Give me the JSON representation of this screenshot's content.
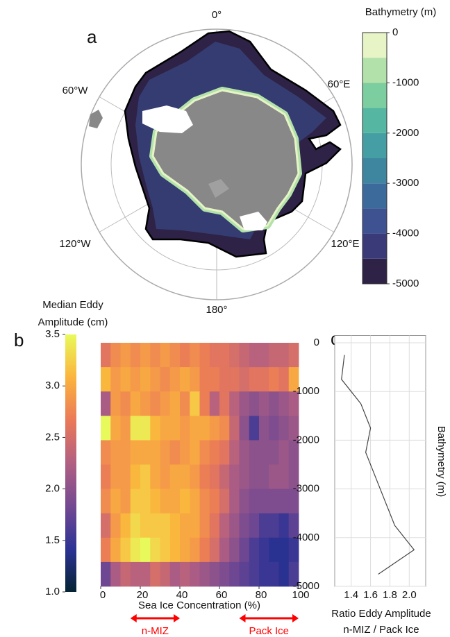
{
  "chart_data": [
    {
      "type": "map",
      "panel_label": "a",
      "lon_labels": [
        "0°",
        "60°E",
        "120°E",
        "180°",
        "120°W",
        "60°W"
      ],
      "colorbar_label": "Bathymetry (m)",
      "clim": [
        -5000,
        0
      ],
      "colorbar_ticks": [
        0,
        -1000,
        -2000,
        -3000,
        -4000,
        -5000
      ],
      "colors": [
        "#2e2246",
        "#3a3a78",
        "#3e5292",
        "#3c6b9b",
        "#3e86a0",
        "#449ea3",
        "#55b6a2",
        "#7ccd9f",
        "#b2e2aa",
        "#e6f4c6"
      ]
    },
    {
      "type": "heatmap",
      "panel_label": "b",
      "xlabel": "Sea Ice Concentration (%)",
      "x_bins": [
        0,
        5,
        10,
        15,
        20,
        25,
        30,
        35,
        40,
        45,
        50,
        55,
        60,
        65,
        70,
        75,
        80,
        85,
        90,
        95,
        100
      ],
      "y_bins": [
        0,
        -500,
        -1000,
        -1500,
        -2000,
        -2500,
        -3000,
        -3500,
        -4000,
        -4500,
        -5000
      ],
      "xlim": [
        0,
        100
      ],
      "ylim": [
        -5000,
        0
      ],
      "xticks": [
        0,
        20,
        40,
        60,
        80,
        100
      ],
      "values": [
        [
          2.6,
          2.8,
          2.9,
          2.8,
          2.9,
          2.8,
          2.9,
          2.8,
          2.7,
          2.8,
          2.7,
          2.6,
          2.6,
          2.5,
          2.4,
          2.3,
          2.3,
          2.4,
          2.4,
          2.5
        ],
        [
          3.1,
          2.9,
          3.0,
          2.9,
          3.0,
          2.9,
          2.8,
          2.9,
          3.0,
          2.9,
          2.7,
          2.7,
          2.6,
          2.6,
          2.5,
          2.6,
          2.6,
          2.7,
          2.6,
          3.0
        ],
        [
          2.2,
          2.9,
          2.8,
          3.0,
          2.9,
          2.8,
          2.9,
          3.0,
          2.8,
          3.2,
          2.7,
          2.3,
          2.6,
          2.3,
          2.1,
          2.0,
          2.1,
          2.0,
          2.1,
          2.2
        ],
        [
          3.5,
          3.0,
          2.9,
          3.4,
          3.4,
          3.1,
          3.0,
          3.0,
          2.9,
          3.0,
          3.0,
          2.9,
          2.8,
          2.4,
          2.0,
          1.6,
          2.0,
          1.9,
          2.0,
          2.1
        ],
        [
          2.8,
          2.9,
          2.9,
          3.0,
          3.0,
          3.0,
          2.9,
          2.8,
          2.9,
          3.0,
          2.8,
          2.7,
          2.6,
          2.3,
          2.1,
          2.0,
          2.0,
          2.0,
          2.1,
          2.0
        ],
        [
          2.7,
          2.9,
          2.9,
          3.1,
          3.2,
          3.0,
          2.9,
          3.0,
          3.0,
          2.9,
          2.7,
          2.6,
          2.4,
          2.2,
          2.1,
          2.0,
          2.0,
          2.1,
          2.1,
          2.0
        ],
        [
          2.8,
          3.0,
          2.9,
          3.2,
          3.2,
          3.1,
          3.0,
          3.0,
          3.1,
          3.0,
          2.8,
          2.7,
          2.5,
          2.2,
          2.0,
          1.9,
          1.9,
          1.9,
          1.9,
          1.9
        ],
        [
          2.5,
          2.9,
          3.1,
          3.3,
          3.2,
          3.2,
          3.2,
          3.1,
          3.0,
          3.0,
          2.8,
          2.6,
          2.3,
          2.1,
          1.9,
          1.8,
          1.6,
          1.6,
          1.5,
          1.7
        ],
        [
          2.7,
          3.0,
          3.2,
          3.4,
          3.5,
          3.3,
          3.2,
          3.1,
          3.0,
          2.9,
          2.7,
          2.5,
          2.2,
          2.0,
          1.8,
          1.6,
          1.5,
          1.4,
          1.4,
          1.5
        ],
        [
          1.8,
          2.2,
          2.4,
          2.3,
          2.3,
          2.5,
          2.4,
          2.2,
          2.3,
          2.2,
          2.1,
          2.0,
          1.9,
          1.8,
          1.7,
          1.6,
          1.5,
          1.5,
          1.4,
          1.6
        ]
      ],
      "colorbar_label": [
        "Median Eddy",
        "Amplitude (cm)"
      ],
      "clim": [
        1,
        3.5
      ],
      "colorbar_ticks": [
        {
          "value": 1,
          "label": "1.0"
        },
        1.5,
        {
          "value": 2,
          "label": "2.0"
        },
        2.5,
        {
          "value": 3,
          "label": "3.0"
        },
        3.5
      ],
      "colormap": [
        "#042333",
        "#2c3395",
        "#744992",
        "#b15f82",
        "#eb7958",
        "#fbb43d",
        "#e8fa5b"
      ],
      "annotations": [
        {
          "text": "n-MIZ",
          "range": [
            15,
            40
          ],
          "color": "#ff0000"
        },
        {
          "text": "Pack Ice",
          "range": [
            70,
            100
          ],
          "color": "#ff0000"
        }
      ]
    },
    {
      "type": "line",
      "panel_label": "c",
      "xlabel": [
        "Ratio Eddy  Amplitude",
        "n-MIZ / Pack Ice"
      ],
      "ylabel": "Bathymetry (m)",
      "series": [
        {
          "color": "#444444",
          "values": [
            1.33,
            1.3,
            1.5,
            1.6,
            1.55,
            1.65,
            1.75,
            1.85,
            2.05,
            1.68
          ],
          "y": [
            -250,
            -750,
            -1250,
            -1750,
            -2250,
            -2750,
            -3250,
            -3750,
            -4250,
            -4750
          ]
        }
      ],
      "xlim": [
        1.23,
        2.17
      ],
      "ylim": [
        -5000,
        150
      ],
      "xticks": [
        1.4,
        1.6,
        1.8,
        {
          "value": 2,
          "label": "2.0"
        }
      ],
      "yticks": [
        0,
        -1000,
        -2000,
        -3000,
        -4000,
        -5000
      ],
      "grid": true
    }
  ]
}
